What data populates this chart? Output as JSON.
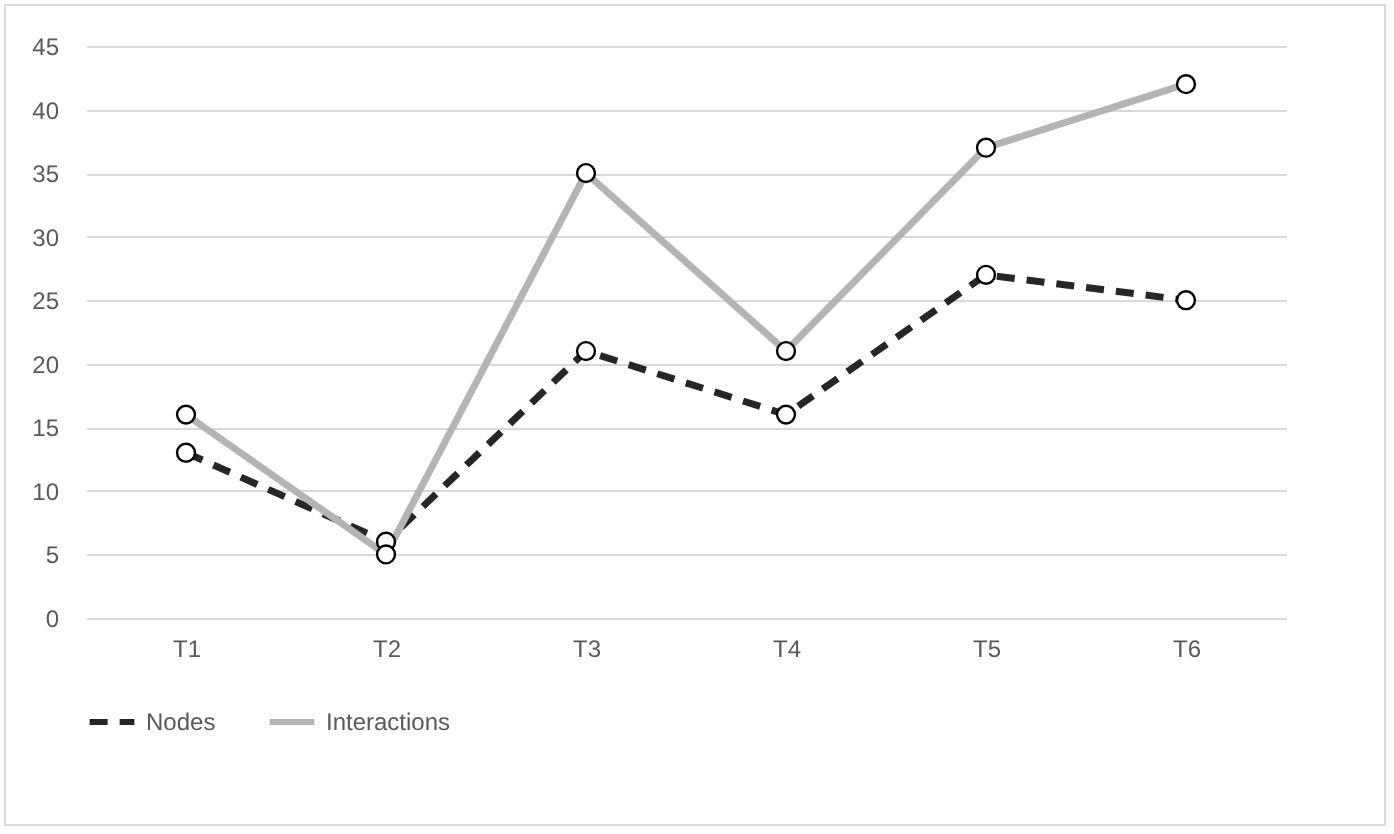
{
  "chart_data": {
    "type": "line",
    "categories": [
      "T1",
      "T2",
      "T3",
      "T4",
      "T5",
      "T6"
    ],
    "series": [
      {
        "name": "Nodes",
        "color": "#262626",
        "line_style": "dashed",
        "values": [
          13,
          6,
          21,
          16,
          27,
          25
        ]
      },
      {
        "name": "Interactions",
        "color": "#b4b4b4",
        "line_style": "solid",
        "values": [
          16,
          5,
          35,
          21,
          37,
          42
        ]
      }
    ],
    "ylim": [
      0,
      45
    ],
    "yticks": [
      0,
      5,
      10,
      15,
      20,
      25,
      30,
      35,
      40,
      45
    ],
    "grid": "y",
    "legend": "bottom",
    "marker": "circle"
  }
}
